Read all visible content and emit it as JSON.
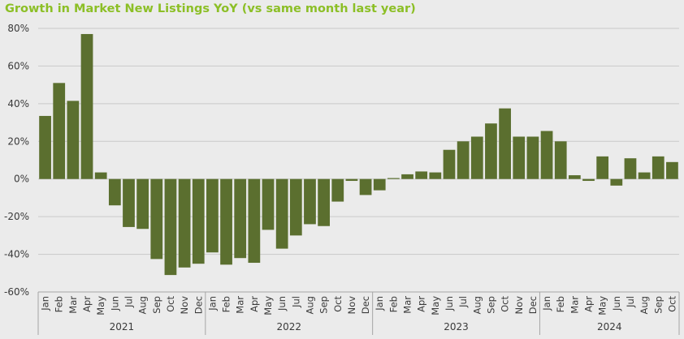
{
  "chart_data": {
    "type": "bar",
    "title": "Growth in Market New Listings YoY (vs same month last year)",
    "xlabel": "",
    "ylabel": "",
    "ylim": [
      -60,
      80
    ],
    "yticks": [
      80,
      60,
      40,
      20,
      0,
      -20,
      -40,
      -60
    ],
    "ytick_labels": [
      "80%",
      "60%",
      "40%",
      "20%",
      "0%",
      "-20%",
      "-40%",
      "-60%"
    ],
    "grid": true,
    "bar_color": "#5b6f2f",
    "groups": [
      {
        "label": "2021",
        "months": [
          "Jan",
          "Feb",
          "Mar",
          "Apr",
          "May",
          "Jun",
          "Jul",
          "Aug",
          "Sep",
          "Oct",
          "Nov",
          "Dec"
        ]
      },
      {
        "label": "2022",
        "months": [
          "Jan",
          "Feb",
          "Mar",
          "Apr",
          "May",
          "Jun",
          "Jul",
          "Aug",
          "Sep",
          "Oct",
          "Nov",
          "Dec"
        ]
      },
      {
        "label": "2023",
        "months": [
          "Jan",
          "Feb",
          "Mar",
          "Apr",
          "May",
          "Jun",
          "Jul",
          "Aug",
          "Sep",
          "Oct",
          "Nov",
          "Dec"
        ]
      },
      {
        "label": "2024",
        "months": [
          "Jan",
          "Feb",
          "Mar",
          "Apr",
          "May",
          "Jun",
          "Jul",
          "Aug",
          "Sep",
          "Oct"
        ]
      }
    ],
    "values": [
      33.5,
      51,
      41.5,
      77,
      3.5,
      -14,
      -25.5,
      -26.5,
      -42.5,
      -51,
      -47,
      -45,
      -39,
      -45.5,
      -42,
      -44.5,
      -27,
      -37,
      -30,
      -24,
      -25,
      -12,
      -1,
      -8.5,
      -6,
      0.5,
      2.5,
      4,
      3.5,
      15.5,
      20,
      22.5,
      29.5,
      37.5,
      22.5,
      22.5,
      25.5,
      20,
      2,
      -1,
      12,
      -3.5,
      11,
      3.5,
      12,
      9
    ]
  }
}
